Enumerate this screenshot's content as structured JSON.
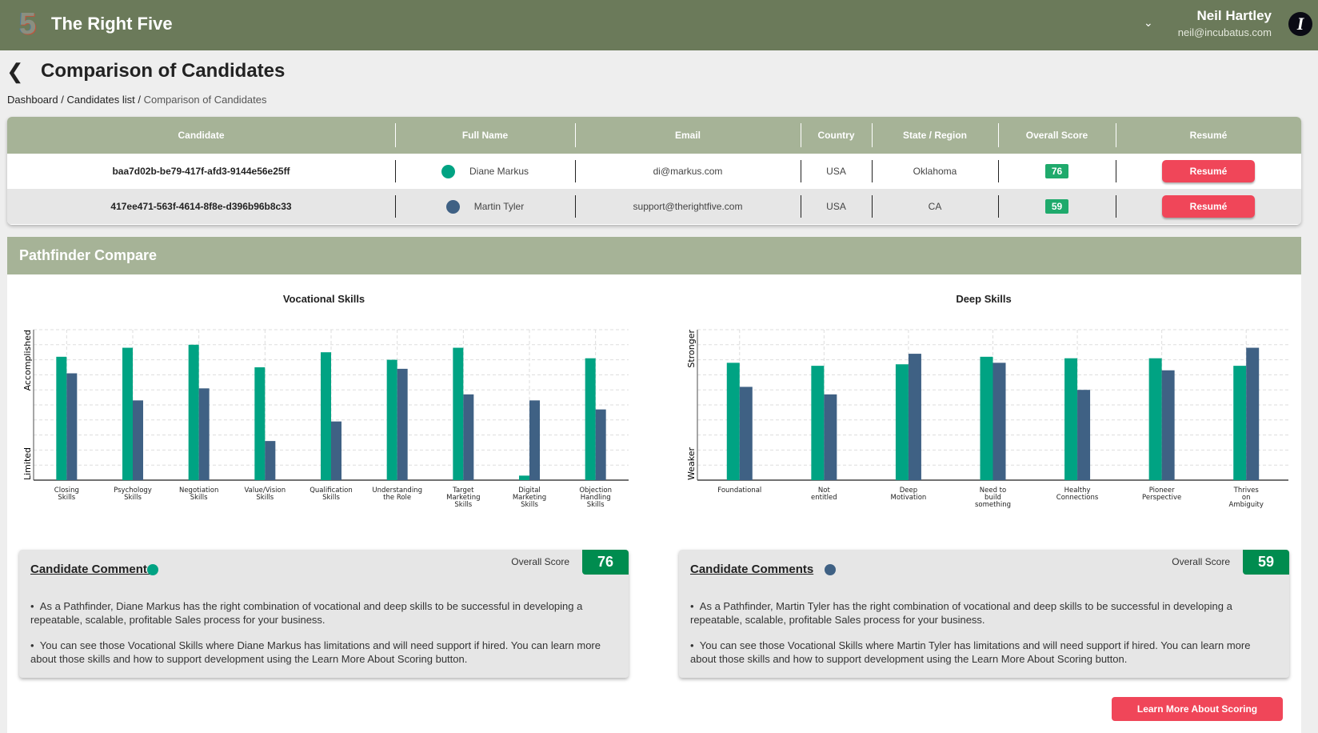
{
  "app": {
    "brand": "The Right Five",
    "logo_text": "5",
    "user_name": "Neil Hartley",
    "user_email": "neil@incubatus.com",
    "avatar_letter": "I"
  },
  "page": {
    "title": "Comparison of Candidates",
    "breadcrumb": [
      "Dashboard",
      "Candidates list",
      "Comparison of Candidates"
    ]
  },
  "table": {
    "headers": [
      "Candidate",
      "Full Name",
      "Email",
      "Country",
      "State / Region",
      "Overall Score",
      "Resumé"
    ],
    "rows": [
      {
        "id": "baa7d02b-be79-417f-afd3-9144e56e25ff",
        "name": "Diane Markus",
        "email": "di@markus.com",
        "country": "USA",
        "state": "Oklahoma",
        "score": "76",
        "resume": "Resumé",
        "color": "#00a383"
      },
      {
        "id": "417ee471-563f-4614-8f8e-d396b96b8c33",
        "name": "Martin Tyler",
        "email": "support@therightfive.com",
        "country": "USA",
        "state": "CA",
        "score": "59",
        "resume": "Resumé",
        "color": "#3f6184"
      }
    ]
  },
  "pathfinder": {
    "title": "Pathfinder Compare"
  },
  "chart_data": [
    {
      "type": "bar",
      "title": "Vocational Skills",
      "ylabel_low": "Limited",
      "ylabel_high": "Accomplished",
      "ylim": [
        0,
        100
      ],
      "grid": true,
      "categories": [
        "Closing Skills",
        "Psychology Skills",
        "Negotiation Skills",
        "Value/Vision Skills",
        "Qualification Skills",
        "Understanding the Role",
        "Target Marketing Skills",
        "Digital Marketing Skills",
        "Objection Handling Skills"
      ],
      "category_lines": [
        [
          "Closing",
          "Skills"
        ],
        [
          "Psychology",
          "Skills"
        ],
        [
          "Negotiation",
          "Skills"
        ],
        [
          "Value/Vision",
          "Skills"
        ],
        [
          "Qualification",
          "Skills"
        ],
        [
          "Understanding",
          "the Role"
        ],
        [
          "Target",
          "Marketing",
          "Skills"
        ],
        [
          "Digital",
          "Marketing",
          "Skills"
        ],
        [
          "Objection",
          "Handling",
          "Skills"
        ]
      ],
      "series": [
        {
          "values": [
            82,
            88,
            90,
            75,
            85,
            80,
            88,
            3,
            81
          ],
          "color": "#00a383"
        },
        {
          "values": [
            71,
            53,
            61,
            26,
            39,
            74,
            57,
            53,
            47
          ],
          "color": "#3f6184"
        }
      ]
    },
    {
      "type": "bar",
      "title": "Deep Skills",
      "ylabel_low": "Weaker",
      "ylabel_high": "Stronger",
      "ylim": [
        0,
        100
      ],
      "grid": true,
      "categories": [
        "Foundational",
        "Not entitled",
        "Deep Motivation",
        "Need to build something",
        "Healthy Connections",
        "Pioneer Perspective",
        "Thrives on Ambiguity"
      ],
      "category_lines": [
        [
          "Foundational"
        ],
        [
          "Not",
          "entitled"
        ],
        [
          "Deep",
          "Motivation"
        ],
        [
          "Need to",
          "build",
          "something"
        ],
        [
          "Healthy",
          "Connections"
        ],
        [
          "Pioneer",
          "Perspective"
        ],
        [
          "Thrives",
          "on",
          "Ambiguity"
        ]
      ],
      "series": [
        {
          "values": [
            78,
            76,
            77,
            82,
            81,
            81,
            76
          ],
          "color": "#00a383"
        },
        {
          "values": [
            62,
            57,
            84,
            78,
            60,
            73,
            88
          ],
          "color": "#3f6184"
        }
      ]
    }
  ],
  "comments": [
    {
      "heading": "Candidate Comments",
      "score_label": "Overall Score",
      "score": "76",
      "color": "#00a383",
      "items": [
        "As a Pathfinder, Diane Markus has the right combination of vocational and deep skills to be successful in developing a repeatable, scalable, profitable Sales process for your business.",
        "You can see those Vocational Skills where Diane Markus has limitations and will need support if hired. You can learn more about those skills and how to support development using the Learn More About Scoring button."
      ]
    },
    {
      "heading": "Candidate Comments",
      "score_label": "Overall Score",
      "score": "59",
      "color": "#3f6184",
      "items": [
        "As a Pathfinder, Martin Tyler has the right combination of vocational and deep skills to be successful in developing a repeatable, scalable, profitable Sales process for your business.",
        "You can see those Vocational Skills where Martin Tyler has limitations and will need support if hired. You can learn more about those skills and how to support development using the Learn More About Scoring button."
      ]
    }
  ],
  "learn_more": "Learn More About Scoring"
}
